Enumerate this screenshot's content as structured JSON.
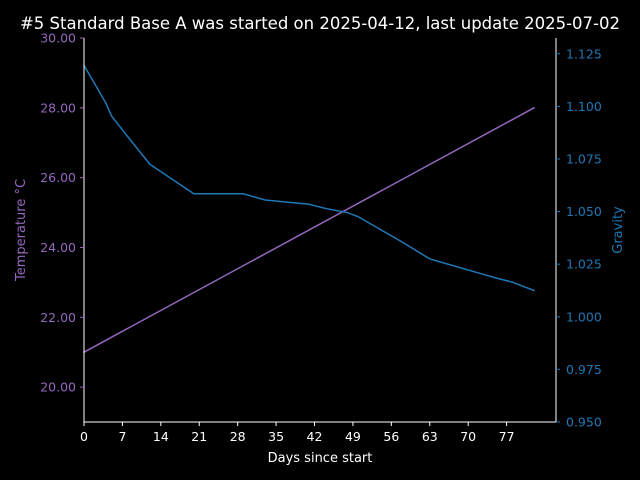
{
  "chart_data": {
    "type": "line",
    "title": "#5 Standard Base A was started on 2025-04-12, last update 2025-07-02",
    "xlabel": "Days since start",
    "ylabel_left": "Temperature °C",
    "ylabel_right": "Gravity",
    "xlim": [
      0,
      86
    ],
    "ylim_left": [
      19.0,
      30.0
    ],
    "ylim_right": [
      0.95,
      1.1325
    ],
    "x_ticks": [
      "0",
      "7",
      "14",
      "21",
      "28",
      "35",
      "42",
      "49",
      "56",
      "63",
      "70",
      "77"
    ],
    "y_left_ticks": [
      "20.00",
      "22.00",
      "24.00",
      "26.00",
      "28.00",
      "30.00"
    ],
    "y_right_ticks": [
      "0.950",
      "0.975",
      "1.000",
      "1.025",
      "1.050",
      "1.075",
      "1.100",
      "1.125"
    ],
    "grid": false,
    "colors": {
      "temperature": "#9467bd",
      "gravity": "#1f77b4",
      "axes": "#ffffff",
      "background": "#000000"
    },
    "series": [
      {
        "axis": "left",
        "color": "#9467bd",
        "x": [
          0,
          82
        ],
        "y": [
          21.0,
          28.0
        ]
      },
      {
        "axis": "right",
        "color": "#1f77b4",
        "x": [
          0,
          2,
          4,
          5,
          8,
          12,
          16,
          20,
          24,
          29,
          33,
          37,
          41,
          44,
          48,
          50,
          54,
          58,
          63,
          67,
          71,
          75,
          78,
          82
        ],
        "y": [
          1.1195,
          1.1105,
          1.1015,
          1.0955,
          1.0855,
          1.0725,
          1.0655,
          1.0585,
          1.0585,
          1.0585,
          1.0555,
          1.0545,
          1.0535,
          1.0515,
          1.0495,
          1.0475,
          1.0415,
          1.0355,
          1.0275,
          1.0245,
          1.0215,
          1.0185,
          1.0165,
          1.0125
        ]
      }
    ]
  }
}
